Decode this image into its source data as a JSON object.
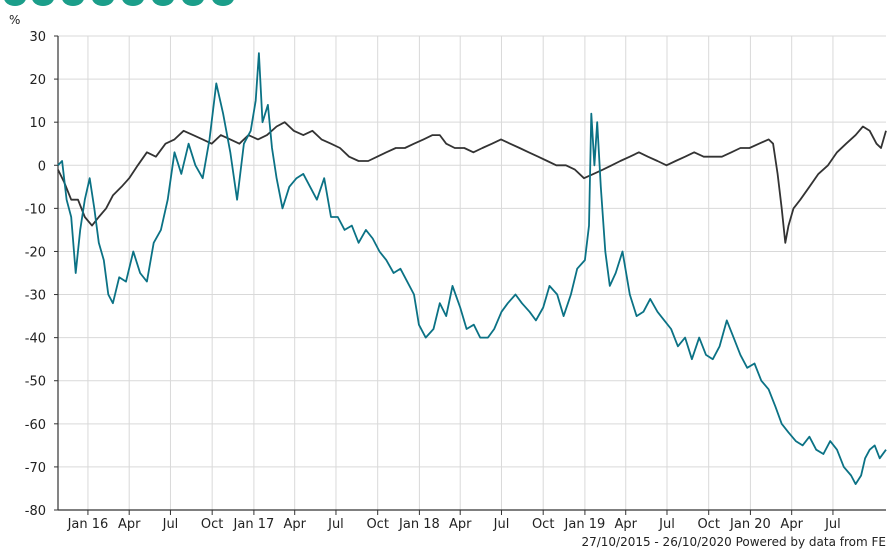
{
  "footer": {
    "date_range": "27/10/2015 - 26/10/2020",
    "credit": "Powered by data from FE"
  },
  "colors": {
    "fund": "#0b7285",
    "sector": "#333333",
    "banner": "#1b9e8a",
    "axis": "#333333",
    "grid": "#d9d9d9"
  },
  "chart_data": {
    "type": "line",
    "title": "",
    "ylabel": "%",
    "xlabel": "",
    "ylim": [
      -80,
      30
    ],
    "yticks": [
      30,
      20,
      10,
      0,
      -10,
      -20,
      -30,
      -40,
      -50,
      -60,
      -70,
      -80
    ],
    "xlim": [
      "2015-10-27",
      "2020-10-26"
    ],
    "xticks": [
      {
        "label": "Jan 16",
        "date": "2016-01-01"
      },
      {
        "label": "Apr",
        "date": "2016-04-01"
      },
      {
        "label": "Jul",
        "date": "2016-07-01"
      },
      {
        "label": "Oct",
        "date": "2016-10-01"
      },
      {
        "label": "Jan 17",
        "date": "2017-01-01"
      },
      {
        "label": "Apr",
        "date": "2017-04-01"
      },
      {
        "label": "Jul",
        "date": "2017-07-01"
      },
      {
        "label": "Oct",
        "date": "2017-10-01"
      },
      {
        "label": "Jan 18",
        "date": "2018-01-01"
      },
      {
        "label": "Apr",
        "date": "2018-04-01"
      },
      {
        "label": "Jul",
        "date": "2018-07-01"
      },
      {
        "label": "Oct",
        "date": "2018-10-01"
      },
      {
        "label": "Jan 19",
        "date": "2019-01-01"
      },
      {
        "label": "Apr",
        "date": "2019-04-01"
      },
      {
        "label": "Jul",
        "date": "2019-07-01"
      },
      {
        "label": "Oct",
        "date": "2019-10-01"
      },
      {
        "label": "Jan 20",
        "date": "2020-01-01"
      },
      {
        "label": "Apr",
        "date": "2020-04-01"
      },
      {
        "label": "Jul",
        "date": "2020-07-01"
      }
    ],
    "grid": true,
    "series": [
      {
        "key": "fund",
        "color": "#0b7285",
        "points": [
          [
            "2015-10-27",
            0
          ],
          [
            "2015-11-05",
            1
          ],
          [
            "2015-11-15",
            -8
          ],
          [
            "2015-11-25",
            -12
          ],
          [
            "2015-12-05",
            -25
          ],
          [
            "2015-12-15",
            -15
          ],
          [
            "2015-12-25",
            -8
          ],
          [
            "2016-01-05",
            -3
          ],
          [
            "2016-01-15",
            -10
          ],
          [
            "2016-01-25",
            -18
          ],
          [
            "2016-02-05",
            -22
          ],
          [
            "2016-02-15",
            -30
          ],
          [
            "2016-02-25",
            -32
          ],
          [
            "2016-03-10",
            -26
          ],
          [
            "2016-03-25",
            -27
          ],
          [
            "2016-04-10",
            -20
          ],
          [
            "2016-04-25",
            -25
          ],
          [
            "2016-05-10",
            -27
          ],
          [
            "2016-05-25",
            -18
          ],
          [
            "2016-06-10",
            -15
          ],
          [
            "2016-06-25",
            -8
          ],
          [
            "2016-07-10",
            3
          ],
          [
            "2016-07-25",
            -2
          ],
          [
            "2016-08-10",
            5
          ],
          [
            "2016-08-25",
            0
          ],
          [
            "2016-09-10",
            -3
          ],
          [
            "2016-09-25",
            6
          ],
          [
            "2016-10-10",
            19
          ],
          [
            "2016-10-25",
            12
          ],
          [
            "2016-11-10",
            3
          ],
          [
            "2016-11-25",
            -8
          ],
          [
            "2016-12-10",
            5
          ],
          [
            "2016-12-25",
            8
          ],
          [
            "2017-01-05",
            15
          ],
          [
            "2017-01-12",
            26
          ],
          [
            "2017-01-20",
            10
          ],
          [
            "2017-02-01",
            14
          ],
          [
            "2017-02-10",
            4
          ],
          [
            "2017-02-20",
            -3
          ],
          [
            "2017-03-05",
            -10
          ],
          [
            "2017-03-20",
            -5
          ],
          [
            "2017-04-05",
            -3
          ],
          [
            "2017-04-20",
            -2
          ],
          [
            "2017-05-05",
            -5
          ],
          [
            "2017-05-20",
            -8
          ],
          [
            "2017-06-05",
            -3
          ],
          [
            "2017-06-20",
            -12
          ],
          [
            "2017-07-05",
            -12
          ],
          [
            "2017-07-20",
            -15
          ],
          [
            "2017-08-05",
            -14
          ],
          [
            "2017-08-20",
            -18
          ],
          [
            "2017-09-05",
            -15
          ],
          [
            "2017-09-20",
            -17
          ],
          [
            "2017-10-05",
            -20
          ],
          [
            "2017-10-20",
            -22
          ],
          [
            "2017-11-05",
            -25
          ],
          [
            "2017-11-20",
            -24
          ],
          [
            "2017-12-05",
            -27
          ],
          [
            "2017-12-20",
            -30
          ],
          [
            "2017-12-31",
            -37
          ],
          [
            "2018-01-15",
            -40
          ],
          [
            "2018-02-01",
            -38
          ],
          [
            "2018-02-15",
            -32
          ],
          [
            "2018-03-01",
            -35
          ],
          [
            "2018-03-15",
            -28
          ],
          [
            "2018-04-01",
            -33
          ],
          [
            "2018-04-15",
            -38
          ],
          [
            "2018-05-01",
            -37
          ],
          [
            "2018-05-15",
            -40
          ],
          [
            "2018-06-01",
            -40
          ],
          [
            "2018-06-15",
            -38
          ],
          [
            "2018-07-01",
            -34
          ],
          [
            "2018-07-15",
            -32
          ],
          [
            "2018-08-01",
            -30
          ],
          [
            "2018-08-15",
            -32
          ],
          [
            "2018-09-01",
            -34
          ],
          [
            "2018-09-15",
            -36
          ],
          [
            "2018-10-01",
            -33
          ],
          [
            "2018-10-15",
            -28
          ],
          [
            "2018-11-01",
            -30
          ],
          [
            "2018-11-15",
            -35
          ],
          [
            "2018-12-01",
            -30
          ],
          [
            "2018-12-15",
            -24
          ],
          [
            "2019-01-01",
            -22
          ],
          [
            "2019-01-10",
            -14
          ],
          [
            "2019-01-15",
            12
          ],
          [
            "2019-01-22",
            0
          ],
          [
            "2019-01-28",
            10
          ],
          [
            "2019-02-05",
            -5
          ],
          [
            "2019-02-15",
            -20
          ],
          [
            "2019-02-25",
            -28
          ],
          [
            "2019-03-10",
            -25
          ],
          [
            "2019-03-25",
            -20
          ],
          [
            "2019-04-10",
            -30
          ],
          [
            "2019-04-25",
            -35
          ],
          [
            "2019-05-10",
            -34
          ],
          [
            "2019-05-25",
            -31
          ],
          [
            "2019-06-10",
            -34
          ],
          [
            "2019-06-25",
            -36
          ],
          [
            "2019-07-10",
            -38
          ],
          [
            "2019-07-25",
            -42
          ],
          [
            "2019-08-10",
            -40
          ],
          [
            "2019-08-25",
            -45
          ],
          [
            "2019-09-10",
            -40
          ],
          [
            "2019-09-25",
            -44
          ],
          [
            "2019-10-10",
            -45
          ],
          [
            "2019-10-25",
            -42
          ],
          [
            "2019-11-10",
            -36
          ],
          [
            "2019-11-25",
            -40
          ],
          [
            "2019-12-10",
            -44
          ],
          [
            "2019-12-25",
            -47
          ],
          [
            "2020-01-10",
            -46
          ],
          [
            "2020-01-25",
            -50
          ],
          [
            "2020-02-10",
            -52
          ],
          [
            "2020-02-25",
            -56
          ],
          [
            "2020-03-10",
            -60
          ],
          [
            "2020-03-25",
            -62
          ],
          [
            "2020-04-10",
            -64
          ],
          [
            "2020-04-25",
            -65
          ],
          [
            "2020-05-10",
            -63
          ],
          [
            "2020-05-25",
            -66
          ],
          [
            "2020-06-10",
            -67
          ],
          [
            "2020-06-25",
            -64
          ],
          [
            "2020-07-10",
            -66
          ],
          [
            "2020-07-25",
            -70
          ],
          [
            "2020-08-10",
            -72
          ],
          [
            "2020-08-20",
            -74
          ],
          [
            "2020-09-01",
            -72
          ],
          [
            "2020-09-10",
            -68
          ],
          [
            "2020-09-20",
            -66
          ],
          [
            "2020-10-01",
            -65
          ],
          [
            "2020-10-12",
            -68
          ],
          [
            "2020-10-26",
            -66
          ]
        ]
      },
      {
        "key": "sector",
        "color": "#333333",
        "points": [
          [
            "2015-10-27",
            -1
          ],
          [
            "2015-11-10",
            -4
          ],
          [
            "2015-11-25",
            -8
          ],
          [
            "2015-12-10",
            -8
          ],
          [
            "2015-12-25",
            -12
          ],
          [
            "2016-01-10",
            -14
          ],
          [
            "2016-01-25",
            -12
          ],
          [
            "2016-02-10",
            -10
          ],
          [
            "2016-02-25",
            -7
          ],
          [
            "2016-03-15",
            -5
          ],
          [
            "2016-04-01",
            -3
          ],
          [
            "2016-04-20",
            0
          ],
          [
            "2016-05-10",
            3
          ],
          [
            "2016-05-30",
            2
          ],
          [
            "2016-06-20",
            5
          ],
          [
            "2016-07-10",
            6
          ],
          [
            "2016-07-30",
            8
          ],
          [
            "2016-08-20",
            7
          ],
          [
            "2016-09-10",
            6
          ],
          [
            "2016-09-30",
            5
          ],
          [
            "2016-10-20",
            7
          ],
          [
            "2016-11-10",
            6
          ],
          [
            "2016-11-30",
            5
          ],
          [
            "2016-12-20",
            7
          ],
          [
            "2017-01-10",
            6
          ],
          [
            "2017-01-30",
            7
          ],
          [
            "2017-02-20",
            9
          ],
          [
            "2017-03-10",
            10
          ],
          [
            "2017-03-30",
            8
          ],
          [
            "2017-04-20",
            7
          ],
          [
            "2017-05-10",
            8
          ],
          [
            "2017-05-30",
            6
          ],
          [
            "2017-06-20",
            5
          ],
          [
            "2017-07-10",
            4
          ],
          [
            "2017-07-30",
            2
          ],
          [
            "2017-08-20",
            1
          ],
          [
            "2017-09-10",
            1
          ],
          [
            "2017-09-30",
            2
          ],
          [
            "2017-10-20",
            3
          ],
          [
            "2017-11-10",
            4
          ],
          [
            "2017-11-30",
            4
          ],
          [
            "2017-12-20",
            5
          ],
          [
            "2018-01-10",
            6
          ],
          [
            "2018-01-30",
            7
          ],
          [
            "2018-02-15",
            7
          ],
          [
            "2018-03-01",
            5
          ],
          [
            "2018-03-20",
            4
          ],
          [
            "2018-04-10",
            4
          ],
          [
            "2018-04-30",
            3
          ],
          [
            "2018-05-20",
            4
          ],
          [
            "2018-06-10",
            5
          ],
          [
            "2018-06-30",
            6
          ],
          [
            "2018-07-20",
            5
          ],
          [
            "2018-08-10",
            4
          ],
          [
            "2018-08-30",
            3
          ],
          [
            "2018-09-20",
            2
          ],
          [
            "2018-10-10",
            1
          ],
          [
            "2018-10-30",
            0
          ],
          [
            "2018-11-20",
            0
          ],
          [
            "2018-12-10",
            -1
          ],
          [
            "2018-12-30",
            -3
          ],
          [
            "2019-01-20",
            -2
          ],
          [
            "2019-02-10",
            -1
          ],
          [
            "2019-03-01",
            0
          ],
          [
            "2019-03-20",
            1
          ],
          [
            "2019-04-10",
            2
          ],
          [
            "2019-04-30",
            3
          ],
          [
            "2019-05-20",
            2
          ],
          [
            "2019-06-10",
            1
          ],
          [
            "2019-06-30",
            0
          ],
          [
            "2019-07-20",
            1
          ],
          [
            "2019-08-10",
            2
          ],
          [
            "2019-08-30",
            3
          ],
          [
            "2019-09-20",
            2
          ],
          [
            "2019-10-10",
            2
          ],
          [
            "2019-10-30",
            2
          ],
          [
            "2019-11-20",
            3
          ],
          [
            "2019-12-10",
            4
          ],
          [
            "2019-12-30",
            4
          ],
          [
            "2020-01-20",
            5
          ],
          [
            "2020-02-10",
            6
          ],
          [
            "2020-02-20",
            5
          ],
          [
            "2020-03-01",
            -2
          ],
          [
            "2020-03-10",
            -10
          ],
          [
            "2020-03-18",
            -18
          ],
          [
            "2020-03-25",
            -14
          ],
          [
            "2020-04-05",
            -10
          ],
          [
            "2020-04-20",
            -8
          ],
          [
            "2020-05-10",
            -5
          ],
          [
            "2020-05-30",
            -2
          ],
          [
            "2020-06-20",
            0
          ],
          [
            "2020-07-10",
            3
          ],
          [
            "2020-07-30",
            5
          ],
          [
            "2020-08-20",
            7
          ],
          [
            "2020-09-05",
            9
          ],
          [
            "2020-09-20",
            8
          ],
          [
            "2020-10-05",
            5
          ],
          [
            "2020-10-15",
            4
          ],
          [
            "2020-10-26",
            8
          ]
        ]
      }
    ]
  }
}
